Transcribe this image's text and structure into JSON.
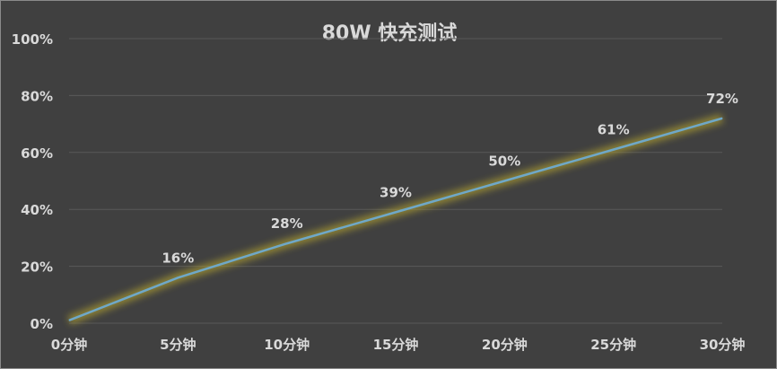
{
  "chart_data": {
    "type": "line",
    "title": "80W 快充测试",
    "categories": [
      "0分钟",
      "5分钟",
      "10分钟",
      "15分钟",
      "20分钟",
      "25分钟",
      "30分钟"
    ],
    "series": [
      {
        "values": [
          1,
          16,
          28,
          39,
          50,
          61,
          72
        ],
        "labels": [
          "",
          "16%",
          "28%",
          "39%",
          "50%",
          "61%",
          "72%"
        ]
      }
    ],
    "y_ticks": [
      "0%",
      "20%",
      "40%",
      "60%",
      "80%",
      "100%"
    ],
    "ylim": [
      0,
      100
    ],
    "grid": true,
    "legend": "none",
    "colors": {
      "background": "#404040",
      "line": "#6fa8c8",
      "glow": "#a89a30",
      "text": "#d9d9d9",
      "grid": "#595959"
    }
  }
}
